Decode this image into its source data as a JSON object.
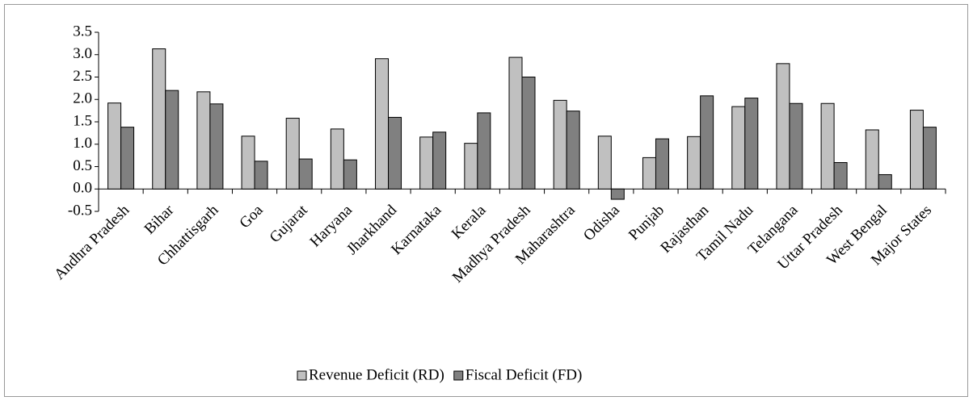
{
  "chart_data": {
    "type": "bar",
    "categories": [
      "Andhra Pradesh",
      "Bihar",
      "Chhattisgarh",
      "Goa",
      "Gujarat",
      "Haryana",
      "Jharkhand",
      "Karnataka",
      "Kerala",
      "Madhya Pradesh",
      "Maharashtra",
      "Odisha",
      "Punjab",
      "Rajasthan",
      "Tamil Nadu",
      "Telangana",
      "Uttar Pradesh",
      "West Bengal",
      "Major States"
    ],
    "series": [
      {
        "name": "Revenue Deficit (RD)",
        "color": "#c0c0c0",
        "values": [
          1.92,
          3.13,
          2.17,
          1.18,
          1.58,
          1.34,
          2.91,
          1.16,
          1.02,
          2.94,
          1.98,
          1.18,
          0.7,
          1.17,
          1.84,
          2.8,
          1.91,
          1.32,
          1.76
        ]
      },
      {
        "name": "Fiscal Deficit (FD)",
        "color": "#808080",
        "values": [
          1.38,
          2.2,
          1.9,
          0.62,
          0.67,
          0.65,
          1.6,
          1.27,
          1.7,
          2.5,
          1.74,
          -0.23,
          1.12,
          2.08,
          2.03,
          1.91,
          0.59,
          0.32,
          1.38
        ]
      }
    ],
    "ylim": [
      -0.5,
      3.5
    ],
    "yticks": [
      -0.5,
      {
        "value": 0,
        "label": "0.0"
      },
      0.5,
      {
        "value": 1,
        "label": "1.0"
      },
      1.5,
      {
        "value": 2,
        "label": "2.0"
      },
      2.5,
      {
        "value": 3,
        "label": "3.0"
      },
      3.5
    ],
    "grid": false,
    "legend": "bottom"
  }
}
